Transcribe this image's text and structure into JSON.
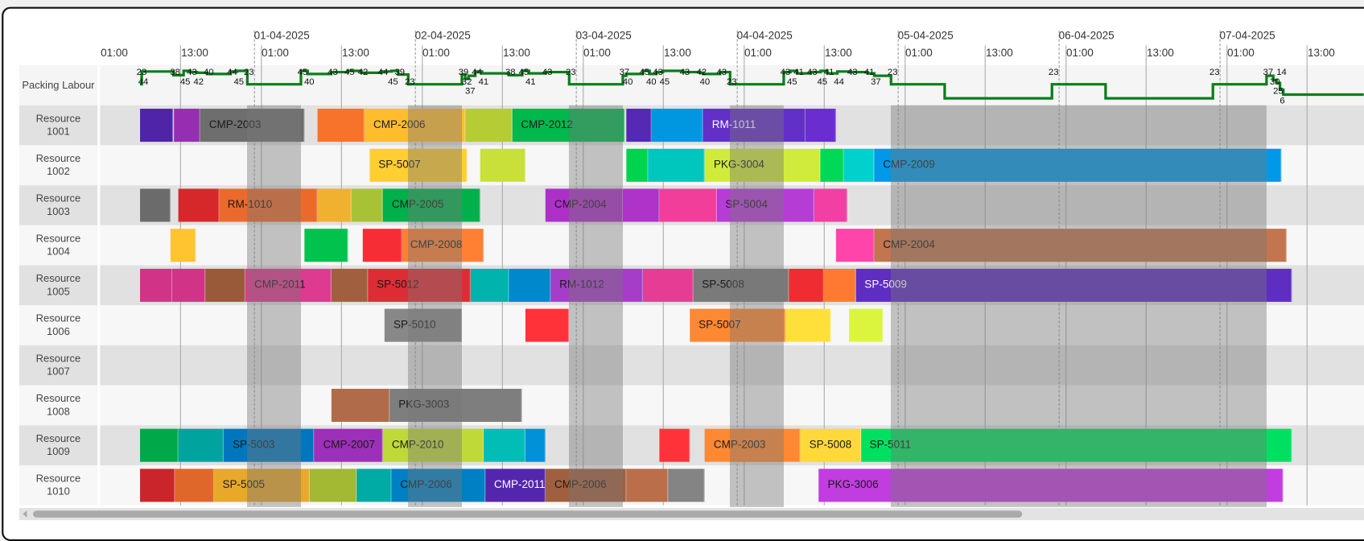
{
  "timeline": {
    "origin": "2025-03-31 00:00",
    "date_labels": [
      "01-04-2025",
      "02-04-2025",
      "03-04-2025",
      "04-04-2025",
      "05-04-2025",
      "06-04-2025",
      "07-04-2025"
    ],
    "time_labels": [
      "01:00",
      "13:00",
      "01:00",
      "13:00",
      "01:00",
      "13:00",
      "01:00",
      "13:00",
      "01:00",
      "13:00",
      "01:00",
      "13:00",
      "01:00",
      "13:00",
      "01:00",
      "13:00"
    ]
  },
  "labour": {
    "label": "Packing Labour",
    "line_color": "#0a7d1a",
    "points": [
      [
        "2025-03-31 07:00",
        23
      ],
      [
        "2025-03-31 07:15",
        44
      ],
      [
        "2025-03-31 12:00",
        38
      ],
      [
        "2025-03-31 13:30",
        45
      ],
      [
        "2025-03-31 14:30",
        43
      ],
      [
        "2025-03-31 15:30",
        42
      ],
      [
        "2025-03-31 17:00",
        40
      ],
      [
        "2025-03-31 20:30",
        44
      ],
      [
        "2025-03-31 21:30",
        45
      ],
      [
        "2025-03-31 23:00",
        23
      ],
      [
        "2025-04-01 07:00",
        45
      ],
      [
        "2025-04-01 08:00",
        40
      ],
      [
        "2025-04-01 11:30",
        43
      ],
      [
        "2025-04-01 14:00",
        45
      ],
      [
        "2025-04-01 16:00",
        42
      ],
      [
        "2025-04-01 19:00",
        44
      ],
      [
        "2025-04-01 20:30",
        45
      ],
      [
        "2025-04-01 21:30",
        39
      ],
      [
        "2025-04-01 23:00",
        23
      ],
      [
        "2025-04-02 07:00",
        39
      ],
      [
        "2025-04-02 07:30",
        32
      ],
      [
        "2025-04-02 08:00",
        37
      ],
      [
        "2025-04-02 09:00",
        44
      ],
      [
        "2025-04-02 10:00",
        41
      ],
      [
        "2025-04-02 14:00",
        38
      ],
      [
        "2025-04-02 16:00",
        45
      ],
      [
        "2025-04-02 17:00",
        41
      ],
      [
        "2025-04-02 19:30",
        43
      ],
      [
        "2025-04-02 23:00",
        23
      ],
      [
        "2025-04-03 07:00",
        37
      ],
      [
        "2025-04-03 07:30",
        40
      ],
      [
        "2025-04-03 10:00",
        45
      ],
      [
        "2025-04-03 11:00",
        40
      ],
      [
        "2025-04-03 12:00",
        43
      ],
      [
        "2025-04-03 13:00",
        45
      ],
      [
        "2025-04-03 16:00",
        43
      ],
      [
        "2025-04-03 18:30",
        42
      ],
      [
        "2025-04-03 19:00",
        40
      ],
      [
        "2025-04-03 21:30",
        43
      ],
      [
        "2025-04-03 23:00",
        23
      ],
      [
        "2025-04-04 07:00",
        43
      ],
      [
        "2025-04-04 08:00",
        45
      ],
      [
        "2025-04-04 09:00",
        41
      ],
      [
        "2025-04-04 11:00",
        43
      ],
      [
        "2025-04-04 12:30",
        45
      ],
      [
        "2025-04-04 13:30",
        41
      ],
      [
        "2025-04-04 15:00",
        44
      ],
      [
        "2025-04-04 17:00",
        43
      ],
      [
        "2025-04-04 19:30",
        41
      ],
      [
        "2025-04-04 20:30",
        37
      ],
      [
        "2025-04-04 23:00",
        23
      ],
      [
        "2025-04-05 07:00",
        0
      ],
      [
        "2025-04-05 23:00",
        23
      ],
      [
        "2025-04-06 07:00",
        0
      ],
      [
        "2025-04-06 23:00",
        23
      ],
      [
        "2025-04-07 07:00",
        37
      ],
      [
        "2025-04-07 08:00",
        30
      ],
      [
        "2025-04-07 08:30",
        25
      ],
      [
        "2025-04-07 09:00",
        14
      ],
      [
        "2025-04-07 09:30",
        6
      ],
      [
        "2025-04-07 21:30",
        6
      ]
    ]
  },
  "non_working": [
    [
      "2025-03-31 23:00",
      "2025-04-01 07:00"
    ],
    [
      "2025-04-01 23:00",
      "2025-04-02 07:00"
    ],
    [
      "2025-04-02 23:00",
      "2025-04-03 07:00"
    ],
    [
      "2025-04-03 23:00",
      "2025-04-04 07:00"
    ],
    [
      "2025-04-04 23:00",
      "2025-04-07 07:00"
    ]
  ],
  "resources": [
    {
      "name": "Resource 1001",
      "tasks": [
        {
          "start": "2025-03-31 07:00",
          "end": "2025-03-31 12:00",
          "color": "#5024a6"
        },
        {
          "start": "2025-03-31 12:00",
          "end": "2025-03-31 16:00",
          "color": "#952eb0"
        },
        {
          "label": "CMP-2003",
          "start": "2025-03-31 16:00",
          "end": "2025-04-01 07:30",
          "color": "#6e6e6e"
        },
        {
          "start": "2025-04-01 09:30",
          "end": "2025-04-01 16:30",
          "color": "#f7732b"
        },
        {
          "label": "CMP-2006",
          "start": "2025-04-01 16:30",
          "end": "2025-04-02 07:30",
          "color": "#ffbd2e"
        },
        {
          "start": "2025-04-02 07:30",
          "end": "2025-04-02 14:30",
          "color": "#b5cc35"
        },
        {
          "label": "CMP-2012",
          "start": "2025-04-02 14:30",
          "end": "2025-04-03 07:15",
          "color": "#00b84c"
        },
        {
          "start": "2025-04-03 07:30",
          "end": "2025-04-03 11:15",
          "color": "#5529b3"
        },
        {
          "start": "2025-04-03 11:15",
          "end": "2025-04-03 19:00",
          "color": "#0097e0"
        },
        {
          "label": "RM-1011",
          "start": "2025-04-03 19:00",
          "end": "2025-04-04 10:15",
          "color": "#6230c7",
          "text": "#ffffff"
        },
        {
          "start": "2025-04-04 10:15",
          "end": "2025-04-04 14:45",
          "color": "#6a2ed0"
        }
      ]
    },
    {
      "name": "Resource 1002",
      "tasks": [
        {
          "label": "SP-5007",
          "start": "2025-04-01 17:15",
          "end": "2025-04-02 07:45",
          "color": "#ffce30"
        },
        {
          "start": "2025-04-02 09:45",
          "end": "2025-04-02 16:30",
          "color": "#c9e03a"
        },
        {
          "start": "2025-04-03 07:30",
          "end": "2025-04-03 10:45",
          "color": "#00d44f"
        },
        {
          "start": "2025-04-03 10:45",
          "end": "2025-04-03 19:15",
          "color": "#00c7be"
        },
        {
          "label": "PKG-3004",
          "start": "2025-04-03 19:15",
          "end": "2025-04-04 12:30",
          "color": "#d1eb3d"
        },
        {
          "start": "2025-04-04 12:30",
          "end": "2025-04-04 16:00",
          "color": "#00d957"
        },
        {
          "start": "2025-04-04 16:00",
          "end": "2025-04-04 20:30",
          "color": "#00d1cc"
        },
        {
          "label": "CMP-2009",
          "start": "2025-04-04 20:30",
          "end": "2025-04-07 09:15",
          "color": "#0099e8"
        }
      ]
    },
    {
      "name": "Resource 1003",
      "tasks": [
        {
          "start": "2025-03-31 07:00",
          "end": "2025-03-31 11:30",
          "color": "#6b6b6b"
        },
        {
          "start": "2025-03-31 12:45",
          "end": "2025-03-31 18:45",
          "color": "#d6282b"
        },
        {
          "label": "RM-1010",
          "start": "2025-03-31 18:45",
          "end": "2025-04-01 09:30",
          "color": "#eb6a2b"
        },
        {
          "start": "2025-04-01 09:30",
          "end": "2025-04-01 14:30",
          "color": "#f0b030"
        },
        {
          "start": "2025-04-01 14:30",
          "end": "2025-04-01 19:15",
          "color": "#a8c236"
        },
        {
          "label": "CMP-2005",
          "start": "2025-04-01 19:15",
          "end": "2025-04-02 09:45",
          "color": "#00b04a"
        },
        {
          "label": "CMP-2004",
          "start": "2025-04-02 19:30",
          "end": "2025-04-03 07:00",
          "color": "#ac30c8"
        },
        {
          "start": "2025-04-03 07:00",
          "end": "2025-04-03 12:30",
          "color": "#ae33c9"
        },
        {
          "start": "2025-04-03 12:30",
          "end": "2025-04-03 21:00",
          "color": "#f03e9a"
        },
        {
          "label": "SP-5004",
          "start": "2025-04-03 21:00",
          "end": "2025-04-04 11:30",
          "color": "#b53dd6"
        },
        {
          "start": "2025-04-04 11:30",
          "end": "2025-04-04 16:30",
          "color": "#f23fa3"
        }
      ]
    },
    {
      "name": "Resource 1004",
      "tasks": [
        {
          "start": "2025-03-31 11:30",
          "end": "2025-03-31 15:15",
          "color": "#ffc430"
        },
        {
          "start": "2025-04-01 07:30",
          "end": "2025-04-01 14:00",
          "color": "#00c24d"
        },
        {
          "start": "2025-04-01 16:15",
          "end": "2025-04-01 22:00",
          "color": "#f72d35"
        },
        {
          "label": "CMP-2008",
          "start": "2025-04-01 22:00",
          "end": "2025-04-02 10:15",
          "color": "#ff8033"
        },
        {
          "start": "2025-04-04 14:45",
          "end": "2025-04-04 20:30",
          "color": "#ff45aa"
        },
        {
          "label": "CMP-2004",
          "start": "2025-04-04 20:30",
          "end": "2025-04-07 10:00",
          "color": "#c2754e"
        }
      ]
    },
    {
      "name": "Resource 1005",
      "tasks": [
        {
          "start": "2025-03-31 07:00",
          "end": "2025-03-31 11:45",
          "color": "#d13387"
        },
        {
          "start": "2025-03-31 11:45",
          "end": "2025-03-31 16:45",
          "color": "#d13387"
        },
        {
          "start": "2025-03-31 16:45",
          "end": "2025-03-31 22:45",
          "color": "#995a3a"
        },
        {
          "label": "CMP-2011",
          "start": "2025-03-31 22:45",
          "end": "2025-04-01 11:30",
          "color": "#de3a8f"
        },
        {
          "start": "2025-04-01 11:30",
          "end": "2025-04-01 17:00",
          "color": "#a06040"
        },
        {
          "label": "SP-5012",
          "start": "2025-04-01 17:00",
          "end": "2025-04-02 08:15",
          "color": "#de2c35"
        },
        {
          "start": "2025-04-02 08:15",
          "end": "2025-04-02 14:00",
          "color": "#00b3ad"
        },
        {
          "start": "2025-04-02 14:00",
          "end": "2025-04-02 20:15",
          "color": "#0088cc"
        },
        {
          "label": "RM-1012",
          "start": "2025-04-02 20:15",
          "end": "2025-04-03 10:00",
          "color": "#a63dc9"
        },
        {
          "start": "2025-04-03 10:00",
          "end": "2025-04-03 17:30",
          "color": "#e63c93"
        },
        {
          "label": "SP-5008",
          "start": "2025-04-03 17:30",
          "end": "2025-04-04 07:45",
          "color": "#7a7a7a"
        },
        {
          "start": "2025-04-04 07:45",
          "end": "2025-04-04 13:00",
          "color": "#ee2c32"
        },
        {
          "start": "2025-04-04 13:00",
          "end": "2025-04-04 17:45",
          "color": "#ff7a30"
        },
        {
          "label": "SP-5009",
          "start": "2025-04-04 17:45",
          "end": "2025-04-07 10:45",
          "color": "#5e2dc2",
          "text": "#ffffff"
        }
      ]
    },
    {
      "name": "Resource 1006",
      "tasks": [
        {
          "label": "SP-5010",
          "start": "2025-04-01 19:30",
          "end": "2025-04-02 07:00",
          "color": "#888888"
        },
        {
          "start": "2025-04-02 16:30",
          "end": "2025-04-02 23:00",
          "color": "#ff323a"
        },
        {
          "label": "SP-5007",
          "start": "2025-04-03 17:00",
          "end": "2025-04-04 07:15",
          "color": "#ff8833"
        },
        {
          "start": "2025-04-04 07:15",
          "end": "2025-04-04 14:00",
          "color": "#ffe03a"
        },
        {
          "start": "2025-04-04 16:45",
          "end": "2025-04-04 21:45",
          "color": "#dbf53e"
        }
      ]
    },
    {
      "name": "Resource 1007",
      "tasks": []
    },
    {
      "name": "Resource 1008",
      "tasks": [
        {
          "start": "2025-04-01 11:30",
          "end": "2025-04-01 20:15",
          "color": "#b06c4a"
        },
        {
          "label": "PKG-3003",
          "start": "2025-04-01 20:15",
          "end": "2025-04-02 16:00",
          "color": "#7e7e7e"
        }
      ]
    },
    {
      "name": "Resource 1009",
      "tasks": [
        {
          "start": "2025-03-31 07:00",
          "end": "2025-03-31 12:45",
          "color": "#00a84a"
        },
        {
          "start": "2025-03-31 12:45",
          "end": "2025-03-31 19:30",
          "color": "#00a39e"
        },
        {
          "label": "SP-5003",
          "start": "2025-03-31 19:30",
          "end": "2025-04-01 09:00",
          "color": "#0077bd"
        },
        {
          "label": "CMP-2007",
          "start": "2025-04-01 09:00",
          "end": "2025-04-01 19:15",
          "color": "#9c30b8"
        },
        {
          "label": "CMP-2010",
          "start": "2025-04-01 19:15",
          "end": "2025-04-02 10:15",
          "color": "#bfd939"
        },
        {
          "start": "2025-04-02 10:15",
          "end": "2025-04-02 16:30",
          "color": "#00bdb5"
        },
        {
          "start": "2025-04-02 16:30",
          "end": "2025-04-02 19:30",
          "color": "#0091d9"
        },
        {
          "start": "2025-04-03 12:30",
          "end": "2025-04-03 17:00",
          "color": "#ff323a"
        },
        {
          "label": "CMP-2003",
          "start": "2025-04-03 19:15",
          "end": "2025-04-04 09:30",
          "color": "#ff8833"
        },
        {
          "label": "SP-5008",
          "start": "2025-04-04 09:30",
          "end": "2025-04-04 18:30",
          "color": "#ffd93a"
        },
        {
          "label": "SP-5011",
          "start": "2025-04-04 18:30",
          "end": "2025-04-07 10:45",
          "color": "#00e060"
        }
      ]
    },
    {
      "name": "Resource 1010",
      "tasks": [
        {
          "start": "2025-03-31 07:00",
          "end": "2025-03-31 12:15",
          "color": "#c9252a"
        },
        {
          "start": "2025-03-31 12:15",
          "end": "2025-03-31 18:00",
          "color": "#e0672a"
        },
        {
          "label": "SP-5005",
          "start": "2025-03-31 18:00",
          "end": "2025-04-01 08:15",
          "color": "#e8a82a"
        },
        {
          "start": "2025-04-01 08:15",
          "end": "2025-04-01 15:15",
          "color": "#a3b833"
        },
        {
          "start": "2025-04-01 15:15",
          "end": "2025-04-01 20:30",
          "color": "#00aba5"
        },
        {
          "label": "CMP-2006",
          "start": "2025-04-01 20:30",
          "end": "2025-04-02 10:30",
          "color": "#0080c4"
        },
        {
          "label": "CMP-2011",
          "start": "2025-04-02 10:30",
          "end": "2025-04-02 19:30",
          "color": "#5426ad",
          "text": "#ffffff"
        },
        {
          "label": "CMP-2006",
          "start": "2025-04-02 19:30",
          "end": "2025-04-03 07:30",
          "color": "#a0603f"
        },
        {
          "start": "2025-04-03 07:30",
          "end": "2025-04-03 13:45",
          "color": "#ba6e4a"
        },
        {
          "start": "2025-04-03 13:45",
          "end": "2025-04-03 19:15",
          "color": "#848484"
        },
        {
          "label": "PKG-3006",
          "start": "2025-04-04 12:15",
          "end": "2025-04-07 09:30",
          "color": "#c13ddf"
        }
      ]
    }
  ]
}
